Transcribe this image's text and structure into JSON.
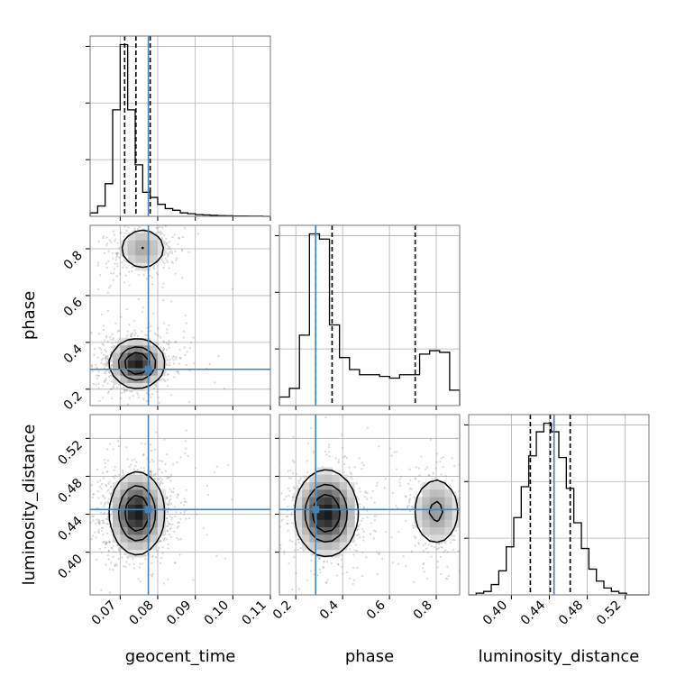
{
  "chart_data": {
    "type": "corner",
    "grid": true,
    "colors": {
      "truth": "#4682b4",
      "line": "#000000",
      "quantile": "#000000",
      "grid": "#b0b0b0",
      "scatter": "#777777"
    },
    "parameters": [
      {
        "name": "geocent_time",
        "range": [
          0.062,
          0.11
        ],
        "ticks": [
          0.07,
          0.08,
          0.09,
          0.1,
          0.11
        ],
        "tick_labels": [
          "0.07",
          "0.08",
          "0.09",
          "0.10",
          "0.11"
        ],
        "truth": 0.0775,
        "quantiles": [
          0.0712,
          0.0742,
          0.078
        ],
        "histogram": {
          "edges": [
            0.062,
            0.064,
            0.066,
            0.068,
            0.07,
            0.072,
            0.074,
            0.076,
            0.078,
            0.08,
            0.082,
            0.084,
            0.086,
            0.088,
            0.09,
            0.092,
            0.094,
            0.096,
            0.098,
            0.1,
            0.102,
            0.104,
            0.106,
            0.108,
            0.11
          ],
          "counts": [
            0.02,
            0.06,
            0.19,
            0.62,
            1.0,
            0.62,
            0.3,
            0.14,
            0.11,
            0.07,
            0.045,
            0.035,
            0.02,
            0.015,
            0.01,
            0.008,
            0.006,
            0.004,
            0.003,
            0.002,
            0.002,
            0.001,
            0.001,
            0.0
          ]
        }
      },
      {
        "name": "phase",
        "range": [
          0.13,
          0.9
        ],
        "ticks": [
          0.2,
          0.4,
          0.6,
          0.8
        ],
        "tick_labels": [
          "0.2",
          "0.4",
          "0.6",
          "0.8"
        ],
        "truth": 0.285,
        "quantiles": [
          0.285,
          0.355,
          0.71
        ],
        "histogram": {
          "edges": [
            0.13,
            0.1728,
            0.2156,
            0.2583,
            0.3011,
            0.3439,
            0.3867,
            0.4294,
            0.4722,
            0.515,
            0.5578,
            0.6006,
            0.6433,
            0.6861,
            0.7289,
            0.7717,
            0.8144,
            0.8572,
            0.9
          ],
          "counts": [
            0.05,
            0.1,
            0.41,
            1.0,
            0.97,
            0.47,
            0.28,
            0.21,
            0.18,
            0.18,
            0.17,
            0.16,
            0.18,
            0.18,
            0.3,
            0.32,
            0.31,
            0.09
          ]
        }
      },
      {
        "name": "luminosity_distance",
        "range": [
          0.355,
          0.545
        ],
        "ticks": [
          0.4,
          0.44,
          0.48,
          0.52
        ],
        "tick_labels": [
          "0.40",
          "0.44",
          "0.48",
          "0.52"
        ],
        "truth": 0.445,
        "quantiles": [
          0.42,
          0.441,
          0.462
        ],
        "histogram": {
          "edges": [
            0.355,
            0.3629,
            0.3708,
            0.3788,
            0.3867,
            0.3946,
            0.4025,
            0.4104,
            0.4183,
            0.4263,
            0.4342,
            0.4421,
            0.45,
            0.4579,
            0.4658,
            0.4738,
            0.4817,
            0.4896,
            0.4975,
            0.5054,
            0.5133,
            0.5213,
            0.5292,
            0.5371,
            0.545
          ],
          "counts": [
            0.0,
            0.01,
            0.02,
            0.06,
            0.14,
            0.28,
            0.45,
            0.63,
            0.81,
            0.95,
            1.0,
            0.95,
            0.8,
            0.62,
            0.42,
            0.27,
            0.15,
            0.08,
            0.04,
            0.02,
            0.01,
            0.0,
            0.0,
            0.0
          ]
        }
      }
    ],
    "pairs": [
      {
        "x": "geocent_time",
        "y": "phase",
        "density_peaks": [
          {
            "x": 0.0745,
            "y": 0.31,
            "sx": 0.0035,
            "sy": 0.05,
            "w": 1.0
          },
          {
            "x": 0.076,
            "y": 0.8,
            "sx": 0.0035,
            "sy": 0.05,
            "w": 0.38
          }
        ]
      },
      {
        "x": "geocent_time",
        "y": "luminosity_distance",
        "density_peaks": [
          {
            "x": 0.0745,
            "y": 0.441,
            "sx": 0.0035,
            "sy": 0.021,
            "w": 1.0
          }
        ]
      },
      {
        "x": "phase",
        "y": "luminosity_distance",
        "density_peaks": [
          {
            "x": 0.33,
            "y": 0.441,
            "sx": 0.065,
            "sy": 0.022,
            "w": 1.0
          },
          {
            "x": 0.8,
            "y": 0.443,
            "sx": 0.055,
            "sy": 0.02,
            "w": 0.45
          }
        ]
      }
    ],
    "contour_levels": [
      0.86,
      0.61,
      0.33
    ]
  }
}
